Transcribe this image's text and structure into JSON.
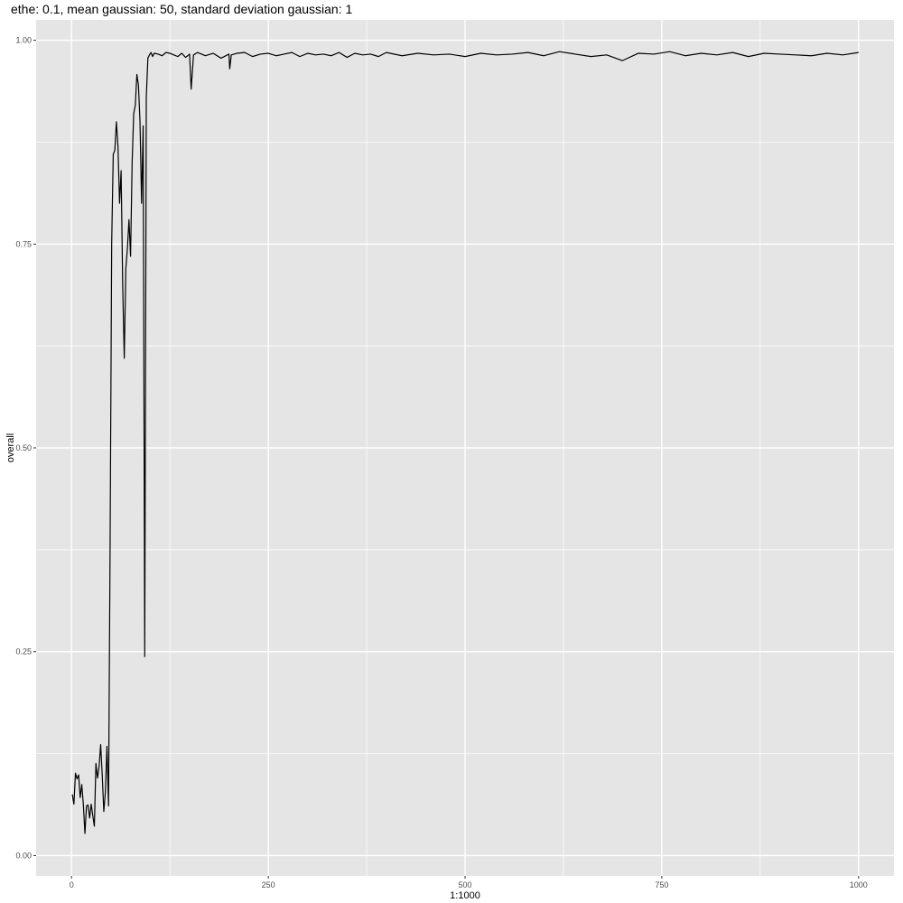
{
  "chart_data": {
    "type": "line",
    "title": "ethe: 0.1, mean gaussian: 50, standard deviation gaussian: 1",
    "xlabel": "1:1000",
    "ylabel": "overall",
    "xlim": [
      -45,
      1045
    ],
    "ylim": [
      -0.025,
      1.025
    ],
    "x_ticks": [
      0,
      250,
      500,
      750,
      1000
    ],
    "x_tick_labels": [
      "0",
      "250",
      "500",
      "750",
      "1000"
    ],
    "x_minor_ticks": [
      125,
      375,
      625,
      875
    ],
    "y_ticks": [
      0.0,
      0.25,
      0.5,
      0.75,
      1.0
    ],
    "y_tick_labels": [
      "0.00",
      "0.25",
      "0.50",
      "0.75",
      "1.00"
    ],
    "y_minor_ticks": [
      0.125,
      0.375,
      0.625,
      0.875
    ],
    "grid": true,
    "legend": "none",
    "panel_color": "#e5e5e5",
    "grid_color": "#ffffff",
    "line_color": "#000000",
    "series": [
      {
        "x": [
          1,
          3,
          5,
          7,
          9,
          11,
          13,
          15,
          17,
          19,
          21,
          23,
          25,
          27,
          29,
          31,
          33,
          35,
          37,
          39,
          41,
          43,
          45,
          47,
          49,
          51,
          53,
          55,
          57,
          59,
          61,
          63,
          65,
          67,
          69,
          71,
          73,
          75,
          77,
          79,
          81,
          83,
          85,
          87,
          89,
          91,
          93,
          95,
          97,
          99,
          101,
          103,
          105,
          110,
          115,
          120,
          125,
          130,
          135,
          140,
          145,
          150,
          152,
          155,
          160,
          170,
          180,
          190,
          200,
          201,
          203,
          210,
          220,
          230,
          240,
          250,
          260,
          270,
          280,
          290,
          300,
          310,
          320,
          330,
          340,
          350,
          360,
          370,
          380,
          390,
          400,
          420,
          440,
          460,
          480,
          500,
          520,
          540,
          560,
          580,
          600,
          620,
          640,
          660,
          680,
          700,
          720,
          740,
          760,
          780,
          800,
          820,
          840,
          860,
          880,
          900,
          920,
          940,
          960,
          980,
          1000
        ],
        "y": [
          0.075,
          0.063,
          0.101,
          0.094,
          0.099,
          0.071,
          0.087,
          0.063,
          0.027,
          0.061,
          0.062,
          0.046,
          0.063,
          0.049,
          0.036,
          0.113,
          0.095,
          0.109,
          0.136,
          0.099,
          0.054,
          0.078,
          0.134,
          0.061,
          0.38,
          0.75,
          0.86,
          0.865,
          0.9,
          0.87,
          0.8,
          0.84,
          0.7,
          0.61,
          0.72,
          0.745,
          0.78,
          0.735,
          0.85,
          0.91,
          0.92,
          0.958,
          0.945,
          0.9,
          0.8,
          0.895,
          0.244,
          0.93,
          0.978,
          0.982,
          0.985,
          0.98,
          0.984,
          0.983,
          0.981,
          0.985,
          0.984,
          0.982,
          0.98,
          0.984,
          0.979,
          0.983,
          0.94,
          0.982,
          0.985,
          0.981,
          0.984,
          0.978,
          0.983,
          0.965,
          0.982,
          0.984,
          0.985,
          0.98,
          0.983,
          0.984,
          0.981,
          0.983,
          0.985,
          0.98,
          0.984,
          0.982,
          0.983,
          0.981,
          0.985,
          0.979,
          0.984,
          0.982,
          0.983,
          0.98,
          0.985,
          0.981,
          0.984,
          0.982,
          0.983,
          0.98,
          0.984,
          0.982,
          0.983,
          0.985,
          0.981,
          0.986,
          0.983,
          0.98,
          0.982,
          0.975,
          0.984,
          0.983,
          0.986,
          0.981,
          0.984,
          0.982,
          0.985,
          0.98,
          0.984,
          0.983,
          0.982,
          0.981,
          0.984,
          0.982,
          0.985
        ]
      }
    ]
  }
}
